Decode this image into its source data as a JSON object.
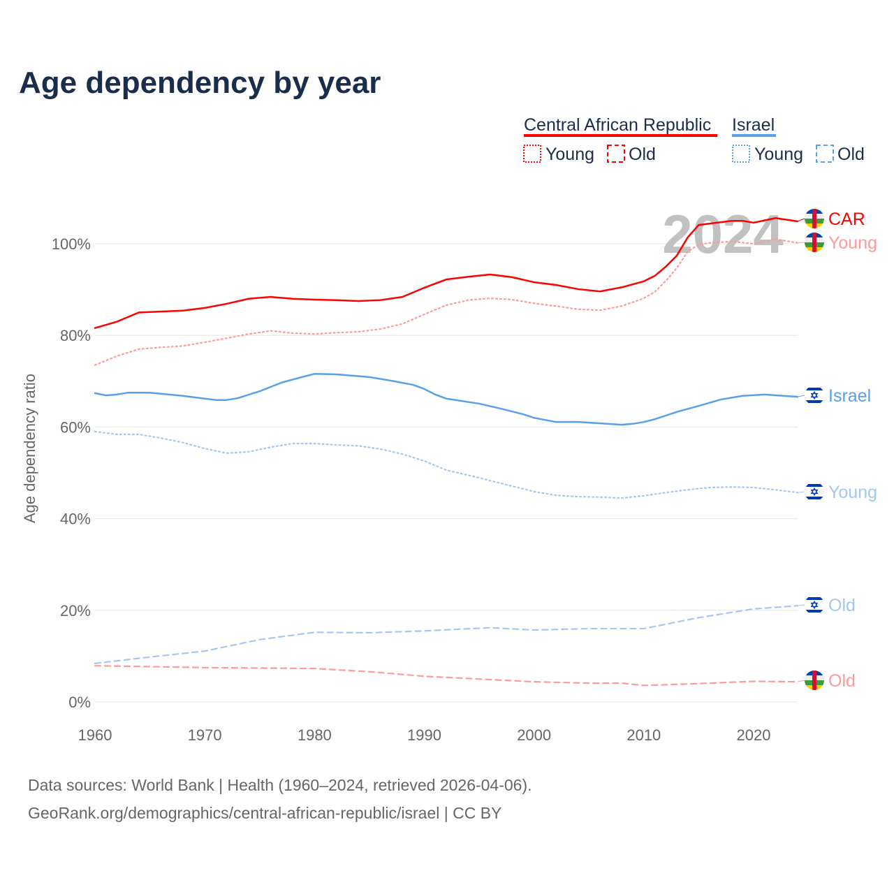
{
  "chart_data": {
    "type": "line",
    "title": "Age dependency by year",
    "ylabel": "Age dependency ratio",
    "xlabel": "",
    "xlim": [
      1960,
      2024
    ],
    "ylim": [
      0,
      110
    ],
    "x_ticks": [
      "1960",
      "1970",
      "1980",
      "1990",
      "2000",
      "2010",
      "2020"
    ],
    "y_ticks": [
      "0%",
      "20%",
      "40%",
      "60%",
      "80%",
      "100%"
    ],
    "grid": true,
    "year_watermark": "2024",
    "legend": {
      "placement": "top-right",
      "groups": [
        {
          "name": "Central African Republic",
          "color": "#ff0000",
          "items": [
            "Young",
            "Old"
          ]
        },
        {
          "name": "Israel",
          "color": "#5aa0e8",
          "items": [
            "Young",
            "Old"
          ]
        }
      ]
    },
    "series": [
      {
        "name": "Central African Republic",
        "label": "CAR",
        "kind": "total",
        "color": "#ff0000",
        "flag": "car",
        "x": [
          1960,
          1962,
          1964,
          1965,
          1968,
          1970,
          1972,
          1974,
          1976,
          1978,
          1980,
          1982,
          1984,
          1986,
          1988,
          1990,
          1992,
          1994,
          1996,
          1998,
          2000,
          2002,
          2004,
          2006,
          2008,
          2010,
          2011,
          2012,
          2013,
          2014,
          2015,
          2016,
          2018,
          2019,
          2020,
          2022,
          2024
        ],
        "y": [
          81.6,
          83,
          85,
          85.1,
          85.4,
          86,
          86.9,
          88,
          88.4,
          88,
          87.8,
          87.7,
          87.5,
          87.7,
          88.4,
          90.4,
          92.2,
          92.8,
          93.3,
          92.7,
          91.6,
          91,
          90.1,
          89.6,
          90.5,
          91.8,
          93,
          95,
          97.4,
          101.4,
          104.1,
          104.4,
          105,
          105,
          104.6,
          105.6,
          104.9
        ]
      },
      {
        "name": "Central African Republic Young",
        "label": "Young",
        "kind": "young",
        "color": "#ff9a9a",
        "flag": "car",
        "x": [
          1960,
          1962,
          1964,
          1966,
          1968,
          1970,
          1972,
          1974,
          1976,
          1978,
          1980,
          1982,
          1984,
          1986,
          1988,
          1990,
          1992,
          1994,
          1996,
          1998,
          2000,
          2002,
          2004,
          2006,
          2008,
          2010,
          2011,
          2012,
          2013,
          2014,
          2015,
          2016,
          2018,
          2020,
          2022,
          2024
        ],
        "y": [
          73.5,
          75.5,
          77,
          77.4,
          77.7,
          78.5,
          79.4,
          80.3,
          81,
          80.5,
          80.3,
          80.6,
          80.8,
          81.4,
          82.5,
          84.6,
          86.6,
          87.7,
          88.1,
          87.8,
          87,
          86.4,
          85.7,
          85.5,
          86.4,
          88.1,
          89.5,
          91.9,
          94.7,
          98.3,
          99.8,
          100.2,
          100.5,
          100,
          101,
          100.2
        ]
      },
      {
        "name": "Central African Republic Old",
        "label": "Old",
        "kind": "old",
        "color": "#ff9a9a",
        "flag": "car",
        "x": [
          1960,
          1970,
          1980,
          1985,
          1990,
          1995,
          2000,
          2005,
          2008,
          2010,
          2015,
          2020,
          2024
        ],
        "y": [
          7.9,
          7.5,
          7.3,
          6.6,
          5.6,
          5,
          4.4,
          4.1,
          4.1,
          3.6,
          4,
          4.5,
          4.4
        ]
      },
      {
        "name": "Israel",
        "label": "Israel",
        "kind": "total",
        "color": "#5aa0e8",
        "flag": "israel",
        "x": [
          1960,
          1961,
          1962,
          1963,
          1965,
          1968,
          1970,
          1971,
          1972,
          1973,
          1975,
          1977,
          1979,
          1980,
          1982,
          1985,
          1987,
          1989,
          1990,
          1991,
          1992,
          1995,
          1997,
          1999,
          2000,
          2002,
          2004,
          2006,
          2008,
          2009,
          2010,
          2011,
          2013,
          2015,
          2017,
          2019,
          2021,
          2024
        ],
        "y": [
          67.4,
          66.9,
          67.1,
          67.5,
          67.5,
          66.8,
          66.2,
          65.9,
          65.9,
          66.3,
          67.8,
          69.7,
          71,
          71.6,
          71.5,
          70.9,
          70.1,
          69.2,
          68.3,
          67.1,
          66.2,
          65.1,
          64,
          62.8,
          62,
          61.1,
          61.1,
          60.8,
          60.5,
          60.7,
          61.1,
          61.7,
          63.3,
          64.6,
          66,
          66.8,
          67.1,
          66.6
        ]
      },
      {
        "name": "Israel Young",
        "label": "Young",
        "kind": "young",
        "color": "#a3c8f0",
        "flag": "israel",
        "x": [
          1960,
          1962,
          1964,
          1966,
          1968,
          1970,
          1972,
          1974,
          1976,
          1978,
          1980,
          1982,
          1984,
          1986,
          1988,
          1990,
          1992,
          1994,
          1996,
          1998,
          2000,
          2002,
          2004,
          2006,
          2008,
          2010,
          2012,
          2014,
          2016,
          2018,
          2020,
          2022,
          2024
        ],
        "y": [
          59,
          58.4,
          58.4,
          57.6,
          56.6,
          55.3,
          54.3,
          54.6,
          55.6,
          56.4,
          56.4,
          56.1,
          55.9,
          55.2,
          54.1,
          52.6,
          50.6,
          49.5,
          48.3,
          47.1,
          45.9,
          45.1,
          44.8,
          44.7,
          44.5,
          45,
          45.7,
          46.3,
          46.8,
          46.9,
          46.8,
          46.3,
          45.7
        ]
      },
      {
        "name": "Israel Old",
        "label": "Old",
        "kind": "old",
        "color": "#a3c8f0",
        "flag": "israel",
        "x": [
          1960,
          1965,
          1970,
          1975,
          1980,
          1985,
          1990,
          1996,
          2000,
          2005,
          2010,
          2015,
          2020,
          2024
        ],
        "y": [
          8.4,
          9.8,
          11.1,
          13.6,
          15.2,
          15.1,
          15.5,
          16.2,
          15.7,
          16,
          16,
          18.4,
          20.3,
          21
        ]
      }
    ]
  },
  "source": {
    "line1": "Data sources: World Bank | Health (1960–2024, retrieved 2026-04-06).",
    "line2": "GeoRank.org/demographics/central-african-republic/israel | CC BY"
  }
}
